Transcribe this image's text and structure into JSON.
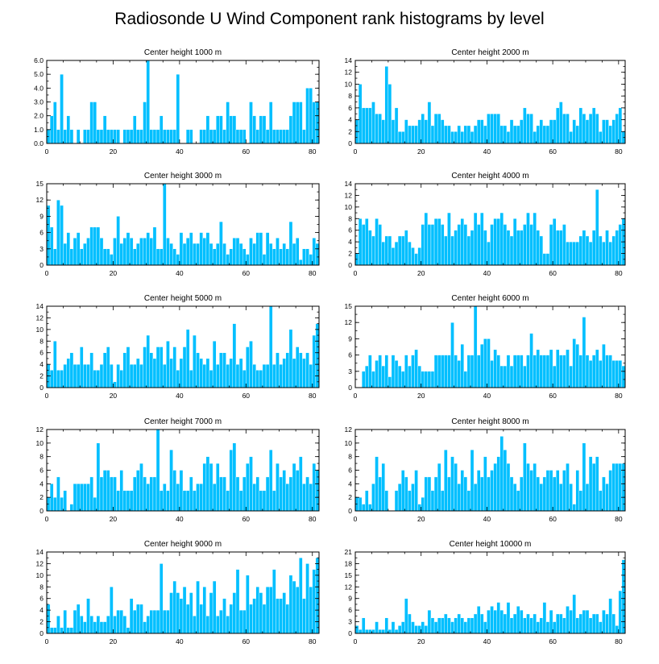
{
  "title": "Radiosonde U Wind Component rank histograms by level",
  "colors": {
    "bar": "#00bfff",
    "axis": "#000000"
  },
  "chart_data": [
    {
      "type": "bar",
      "title": "Center height 1000 m",
      "ylim": [
        0,
        6
      ],
      "yticks": [
        "0.0",
        "1.0",
        "2.0",
        "3.0",
        "4.0",
        "5.0",
        "6.0"
      ],
      "ytick_values": [
        0,
        1,
        2,
        3,
        4,
        5,
        6
      ],
      "xlim": [
        0,
        82
      ],
      "xticks": [
        "0",
        "20",
        "40",
        "60",
        "80"
      ],
      "xtick_values": [
        0,
        20,
        40,
        60,
        80
      ],
      "values": [
        1,
        2,
        3,
        1,
        5,
        1,
        2,
        1,
        0,
        1,
        0,
        1,
        1,
        3,
        3,
        1,
        1,
        2,
        1,
        1,
        1,
        1,
        0,
        1,
        1,
        1,
        2,
        1,
        1,
        3,
        6,
        1,
        1,
        1,
        2,
        1,
        1,
        1,
        1,
        5,
        0,
        0,
        1,
        1,
        0,
        0,
        1,
        1,
        2,
        1,
        1,
        2,
        2,
        1,
        3,
        2,
        2,
        1,
        1,
        1,
        0,
        3,
        2,
        1,
        2,
        2,
        1,
        3,
        1,
        1,
        1,
        1,
        1,
        2,
        3,
        3,
        3,
        1,
        4,
        4,
        3,
        3
      ]
    },
    {
      "type": "bar",
      "title": "Center height 2000 m",
      "ylim": [
        0,
        14
      ],
      "yticks": [
        "0",
        "2",
        "4",
        "6",
        "8",
        "10",
        "12",
        "14"
      ],
      "ytick_values": [
        0,
        2,
        4,
        6,
        8,
        10,
        12,
        14
      ],
      "xlim": [
        0,
        82
      ],
      "xticks": [
        "0",
        "20",
        "40",
        "60",
        "80"
      ],
      "xtick_values": [
        0,
        20,
        40,
        60,
        80
      ],
      "values": [
        4,
        10,
        6,
        6,
        6,
        7,
        5,
        5,
        4,
        13,
        10,
        4,
        6,
        2,
        2,
        4,
        3,
        3,
        3,
        4,
        5,
        4,
        7,
        3,
        5,
        5,
        4,
        3,
        3,
        2,
        2,
        3,
        2,
        3,
        3,
        2,
        3,
        4,
        4,
        3,
        5,
        5,
        5,
        5,
        3,
        3,
        2,
        4,
        3,
        3,
        4,
        6,
        5,
        5,
        2,
        3,
        4,
        3,
        3,
        4,
        4,
        6,
        7,
        5,
        5,
        2,
        4,
        3,
        6,
        5,
        4,
        5,
        6,
        5,
        2,
        4,
        4,
        3,
        4,
        5,
        6,
        2
      ]
    },
    {
      "type": "bar",
      "title": "Center height 3000 m",
      "ylim": [
        0,
        15
      ],
      "yticks": [
        "0",
        "3",
        "6",
        "9",
        "12",
        "15"
      ],
      "ytick_values": [
        0,
        3,
        6,
        9,
        12,
        15
      ],
      "xlim": [
        0,
        82
      ],
      "xticks": [
        "0",
        "20",
        "40",
        "60",
        "80"
      ],
      "xtick_values": [
        0,
        20,
        40,
        60,
        80
      ],
      "values": [
        11,
        7,
        3,
        12,
        11,
        4,
        6,
        3,
        5,
        6,
        3,
        4,
        5,
        7,
        7,
        7,
        5,
        3,
        3,
        2,
        5,
        9,
        4,
        5,
        6,
        5,
        3,
        4,
        5,
        5,
        6,
        5,
        7,
        3,
        3,
        15,
        5,
        4,
        3,
        2,
        6,
        4,
        5,
        6,
        4,
        4,
        6,
        5,
        6,
        4,
        3,
        4,
        8,
        4,
        2,
        3,
        5,
        5,
        4,
        3,
        2,
        5,
        4,
        6,
        6,
        2,
        6,
        4,
        3,
        5,
        3,
        4,
        3,
        8,
        4,
        5,
        1,
        3,
        3,
        2,
        5,
        4
      ]
    },
    {
      "type": "bar",
      "title": "Center height 4000 m",
      "ylim": [
        0,
        14
      ],
      "yticks": [
        "0",
        "2",
        "4",
        "6",
        "8",
        "10",
        "12",
        "14"
      ],
      "ytick_values": [
        0,
        2,
        4,
        6,
        8,
        10,
        12,
        14
      ],
      "xlim": [
        0,
        82
      ],
      "xticks": [
        "0",
        "20",
        "40",
        "60",
        "80"
      ],
      "xtick_values": [
        0,
        20,
        40,
        60,
        80
      ],
      "values": [
        2,
        8,
        7,
        8,
        6,
        5,
        8,
        7,
        4,
        5,
        5,
        3,
        4,
        5,
        5,
        6,
        4,
        3,
        2,
        3,
        7,
        9,
        7,
        7,
        8,
        8,
        7,
        5,
        9,
        5,
        6,
        7,
        8,
        7,
        5,
        6,
        9,
        7,
        9,
        6,
        4,
        7,
        8,
        8,
        9,
        7,
        6,
        5,
        8,
        6,
        6,
        7,
        9,
        7,
        9,
        6,
        5,
        2,
        2,
        7,
        8,
        6,
        6,
        7,
        4,
        4,
        4,
        4,
        5,
        6,
        5,
        4,
        6,
        13,
        5,
        4,
        6,
        4,
        5,
        6,
        7,
        8
      ]
    },
    {
      "type": "bar",
      "title": "Center height 5000 m",
      "ylim": [
        0,
        14
      ],
      "yticks": [
        "0",
        "2",
        "4",
        "6",
        "8",
        "10",
        "12",
        "14"
      ],
      "ytick_values": [
        0,
        2,
        4,
        6,
        8,
        10,
        12,
        14
      ],
      "xlim": [
        0,
        82
      ],
      "xticks": [
        "0",
        "20",
        "40",
        "60",
        "80"
      ],
      "xtick_values": [
        0,
        20,
        40,
        60,
        80
      ],
      "values": [
        4,
        3,
        8,
        3,
        3,
        4,
        5,
        6,
        4,
        4,
        7,
        4,
        4,
        6,
        3,
        3,
        4,
        6,
        7,
        4,
        1,
        4,
        3,
        6,
        7,
        4,
        4,
        5,
        4,
        7,
        9,
        6,
        5,
        7,
        7,
        4,
        8,
        5,
        7,
        3,
        5,
        7,
        10,
        3,
        9,
        6,
        5,
        4,
        5,
        3,
        8,
        4,
        6,
        6,
        4,
        5,
        11,
        4,
        5,
        3,
        7,
        8,
        4,
        3,
        3,
        4,
        4,
        14,
        4,
        6,
        4,
        5,
        6,
        10,
        5,
        7,
        6,
        5,
        6,
        4,
        9,
        11
      ]
    },
    {
      "type": "bar",
      "title": "Center height 6000 m",
      "ylim": [
        0,
        15
      ],
      "yticks": [
        "0",
        "3",
        "6",
        "9",
        "12",
        "15"
      ],
      "ytick_values": [
        0,
        3,
        6,
        9,
        12,
        15
      ],
      "xlim": [
        0,
        82
      ],
      "xticks": [
        "0",
        "20",
        "40",
        "60",
        "80"
      ],
      "xtick_values": [
        0,
        20,
        40,
        60,
        80
      ],
      "values": [
        0,
        0,
        3,
        4,
        6,
        3,
        5,
        6,
        4,
        6,
        2,
        6,
        5,
        4,
        3,
        6,
        4,
        6,
        7,
        4,
        3,
        3,
        3,
        3,
        6,
        6,
        6,
        6,
        6,
        12,
        6,
        5,
        8,
        3,
        6,
        6,
        15,
        6,
        8,
        9,
        9,
        5,
        7,
        6,
        4,
        4,
        6,
        4,
        6,
        6,
        6,
        4,
        6,
        10,
        6,
        7,
        6,
        6,
        6,
        7,
        4,
        7,
        6,
        6,
        7,
        4,
        9,
        8,
        6,
        13,
        6,
        5,
        6,
        7,
        5,
        8,
        6,
        6,
        5,
        5,
        5,
        4
      ]
    },
    {
      "type": "bar",
      "title": "Center height 7000 m",
      "ylim": [
        0,
        12
      ],
      "yticks": [
        "0",
        "2",
        "4",
        "6",
        "8",
        "10",
        "12"
      ],
      "ytick_values": [
        0,
        2,
        4,
        6,
        8,
        10,
        12
      ],
      "xlim": [
        0,
        82
      ],
      "xticks": [
        "0",
        "20",
        "40",
        "60",
        "80"
      ],
      "xtick_values": [
        0,
        20,
        40,
        60,
        80
      ],
      "values": [
        2,
        4,
        2,
        5,
        2,
        3,
        0,
        1,
        4,
        4,
        4,
        4,
        4,
        5,
        2,
        10,
        5,
        6,
        6,
        5,
        5,
        3,
        6,
        3,
        3,
        3,
        5,
        6,
        7,
        5,
        4,
        5,
        5,
        12,
        3,
        4,
        3,
        9,
        6,
        4,
        6,
        3,
        3,
        5,
        3,
        4,
        4,
        7,
        8,
        7,
        4,
        7,
        5,
        5,
        3,
        9,
        10,
        5,
        3,
        5,
        7,
        8,
        4,
        5,
        3,
        3,
        5,
        9,
        3,
        7,
        5,
        6,
        4,
        5,
        7,
        6,
        8,
        4,
        5,
        4,
        7,
        6
      ]
    },
    {
      "type": "bar",
      "title": "Center height 8000 m",
      "ylim": [
        0,
        12
      ],
      "yticks": [
        "0",
        "2",
        "4",
        "6",
        "8",
        "10",
        "12"
      ],
      "ytick_values": [
        0,
        2,
        4,
        6,
        8,
        10,
        12
      ],
      "xlim": [
        0,
        82
      ],
      "xticks": [
        "0",
        "20",
        "40",
        "60",
        "80"
      ],
      "xtick_values": [
        0,
        20,
        40,
        60,
        80
      ],
      "values": [
        2,
        2,
        1,
        3,
        1,
        4,
        8,
        5,
        7,
        3,
        0,
        0,
        3,
        4,
        6,
        5,
        3,
        4,
        6,
        1,
        2,
        5,
        5,
        3,
        5,
        7,
        3,
        9,
        5,
        8,
        7,
        4,
        6,
        5,
        3,
        9,
        4,
        6,
        5,
        8,
        5,
        6,
        7,
        8,
        11,
        9,
        7,
        5,
        4,
        3,
        5,
        10,
        7,
        6,
        7,
        5,
        4,
        5,
        6,
        6,
        5,
        6,
        4,
        6,
        7,
        4,
        1,
        6,
        3,
        10,
        4,
        8,
        7,
        8,
        3,
        5,
        4,
        6,
        7,
        7,
        7,
        7
      ]
    },
    {
      "type": "bar",
      "title": "Center height 9000 m",
      "ylim": [
        0,
        14
      ],
      "yticks": [
        "0",
        "2",
        "4",
        "6",
        "8",
        "10",
        "12",
        "14"
      ],
      "ytick_values": [
        0,
        2,
        4,
        6,
        8,
        10,
        12,
        14
      ],
      "xlim": [
        0,
        82
      ],
      "xticks": [
        "0",
        "20",
        "40",
        "60",
        "80"
      ],
      "xtick_values": [
        0,
        20,
        40,
        60,
        80
      ],
      "values": [
        5,
        1,
        1,
        3,
        1,
        4,
        1,
        1,
        4,
        5,
        3,
        2,
        6,
        3,
        2,
        3,
        2,
        2,
        3,
        8,
        3,
        4,
        4,
        3,
        1,
        6,
        4,
        5,
        5,
        2,
        3,
        4,
        4,
        4,
        12,
        4,
        4,
        7,
        9,
        7,
        6,
        8,
        5,
        7,
        3,
        9,
        5,
        8,
        3,
        7,
        9,
        3,
        4,
        6,
        3,
        5,
        7,
        11,
        4,
        4,
        10,
        5,
        6,
        8,
        7,
        5,
        8,
        8,
        11,
        6,
        6,
        7,
        5,
        10,
        9,
        8,
        13,
        6,
        12,
        8,
        11,
        13
      ]
    },
    {
      "type": "bar",
      "title": "Center height 10000 m",
      "ylim": [
        0,
        21
      ],
      "yticks": [
        "0",
        "3",
        "6",
        "9",
        "12",
        "15",
        "18",
        "21"
      ],
      "ytick_values": [
        0,
        3,
        6,
        9,
        12,
        15,
        18,
        21
      ],
      "xlim": [
        0,
        82
      ],
      "xticks": [
        "0",
        "20",
        "40",
        "60",
        "80"
      ],
      "xtick_values": [
        0,
        20,
        40,
        60,
        80
      ],
      "values": [
        2,
        1,
        4,
        1,
        1,
        1,
        3,
        1,
        1,
        4,
        1,
        3,
        1,
        2,
        3,
        9,
        5,
        3,
        2,
        2,
        3,
        2,
        6,
        4,
        3,
        4,
        4,
        5,
        4,
        3,
        4,
        5,
        4,
        3,
        4,
        4,
        5,
        7,
        5,
        3,
        6,
        7,
        6,
        8,
        6,
        5,
        8,
        4,
        5,
        7,
        6,
        4,
        5,
        4,
        5,
        3,
        4,
        8,
        3,
        6,
        3,
        5,
        5,
        4,
        7,
        6,
        10,
        4,
        5,
        6,
        6,
        4,
        5,
        5,
        3,
        6,
        5,
        9,
        5,
        2,
        11,
        19
      ]
    }
  ]
}
